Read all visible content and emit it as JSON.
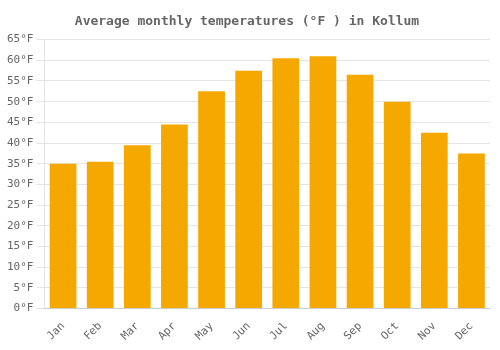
{
  "chart_data": {
    "type": "bar",
    "title": "Average monthly temperatures (°F ) in Kollum",
    "categories": [
      "Jan",
      "Feb",
      "Mar",
      "Apr",
      "May",
      "Jun",
      "Jul",
      "Aug",
      "Sep",
      "Oct",
      "Nov",
      "Dec"
    ],
    "values": [
      35,
      35.5,
      39.5,
      44.5,
      52.5,
      57.5,
      60.5,
      61,
      56.5,
      50,
      42.5,
      37.5
    ],
    "color": "#F5A800",
    "ylim": [
      0,
      65
    ],
    "yticks": [
      {
        "value": 0,
        "label": "0°F"
      },
      {
        "value": 5,
        "label": "5°F"
      },
      {
        "value": 10,
        "label": "10°F"
      },
      {
        "value": 15,
        "label": "15°F"
      },
      {
        "value": 20,
        "label": "20°F"
      },
      {
        "value": 25,
        "label": "25°F"
      },
      {
        "value": 30,
        "label": "30°F"
      },
      {
        "value": 35,
        "label": "35°F"
      },
      {
        "value": 40,
        "label": "40°F"
      },
      {
        "value": 45,
        "label": "45°F"
      },
      {
        "value": 50,
        "label": "50°F"
      },
      {
        "value": 55,
        "label": "55°F"
      },
      {
        "value": 60,
        "label": "60°F"
      },
      {
        "value": 65,
        "label": "65°F"
      }
    ],
    "grid": true
  }
}
